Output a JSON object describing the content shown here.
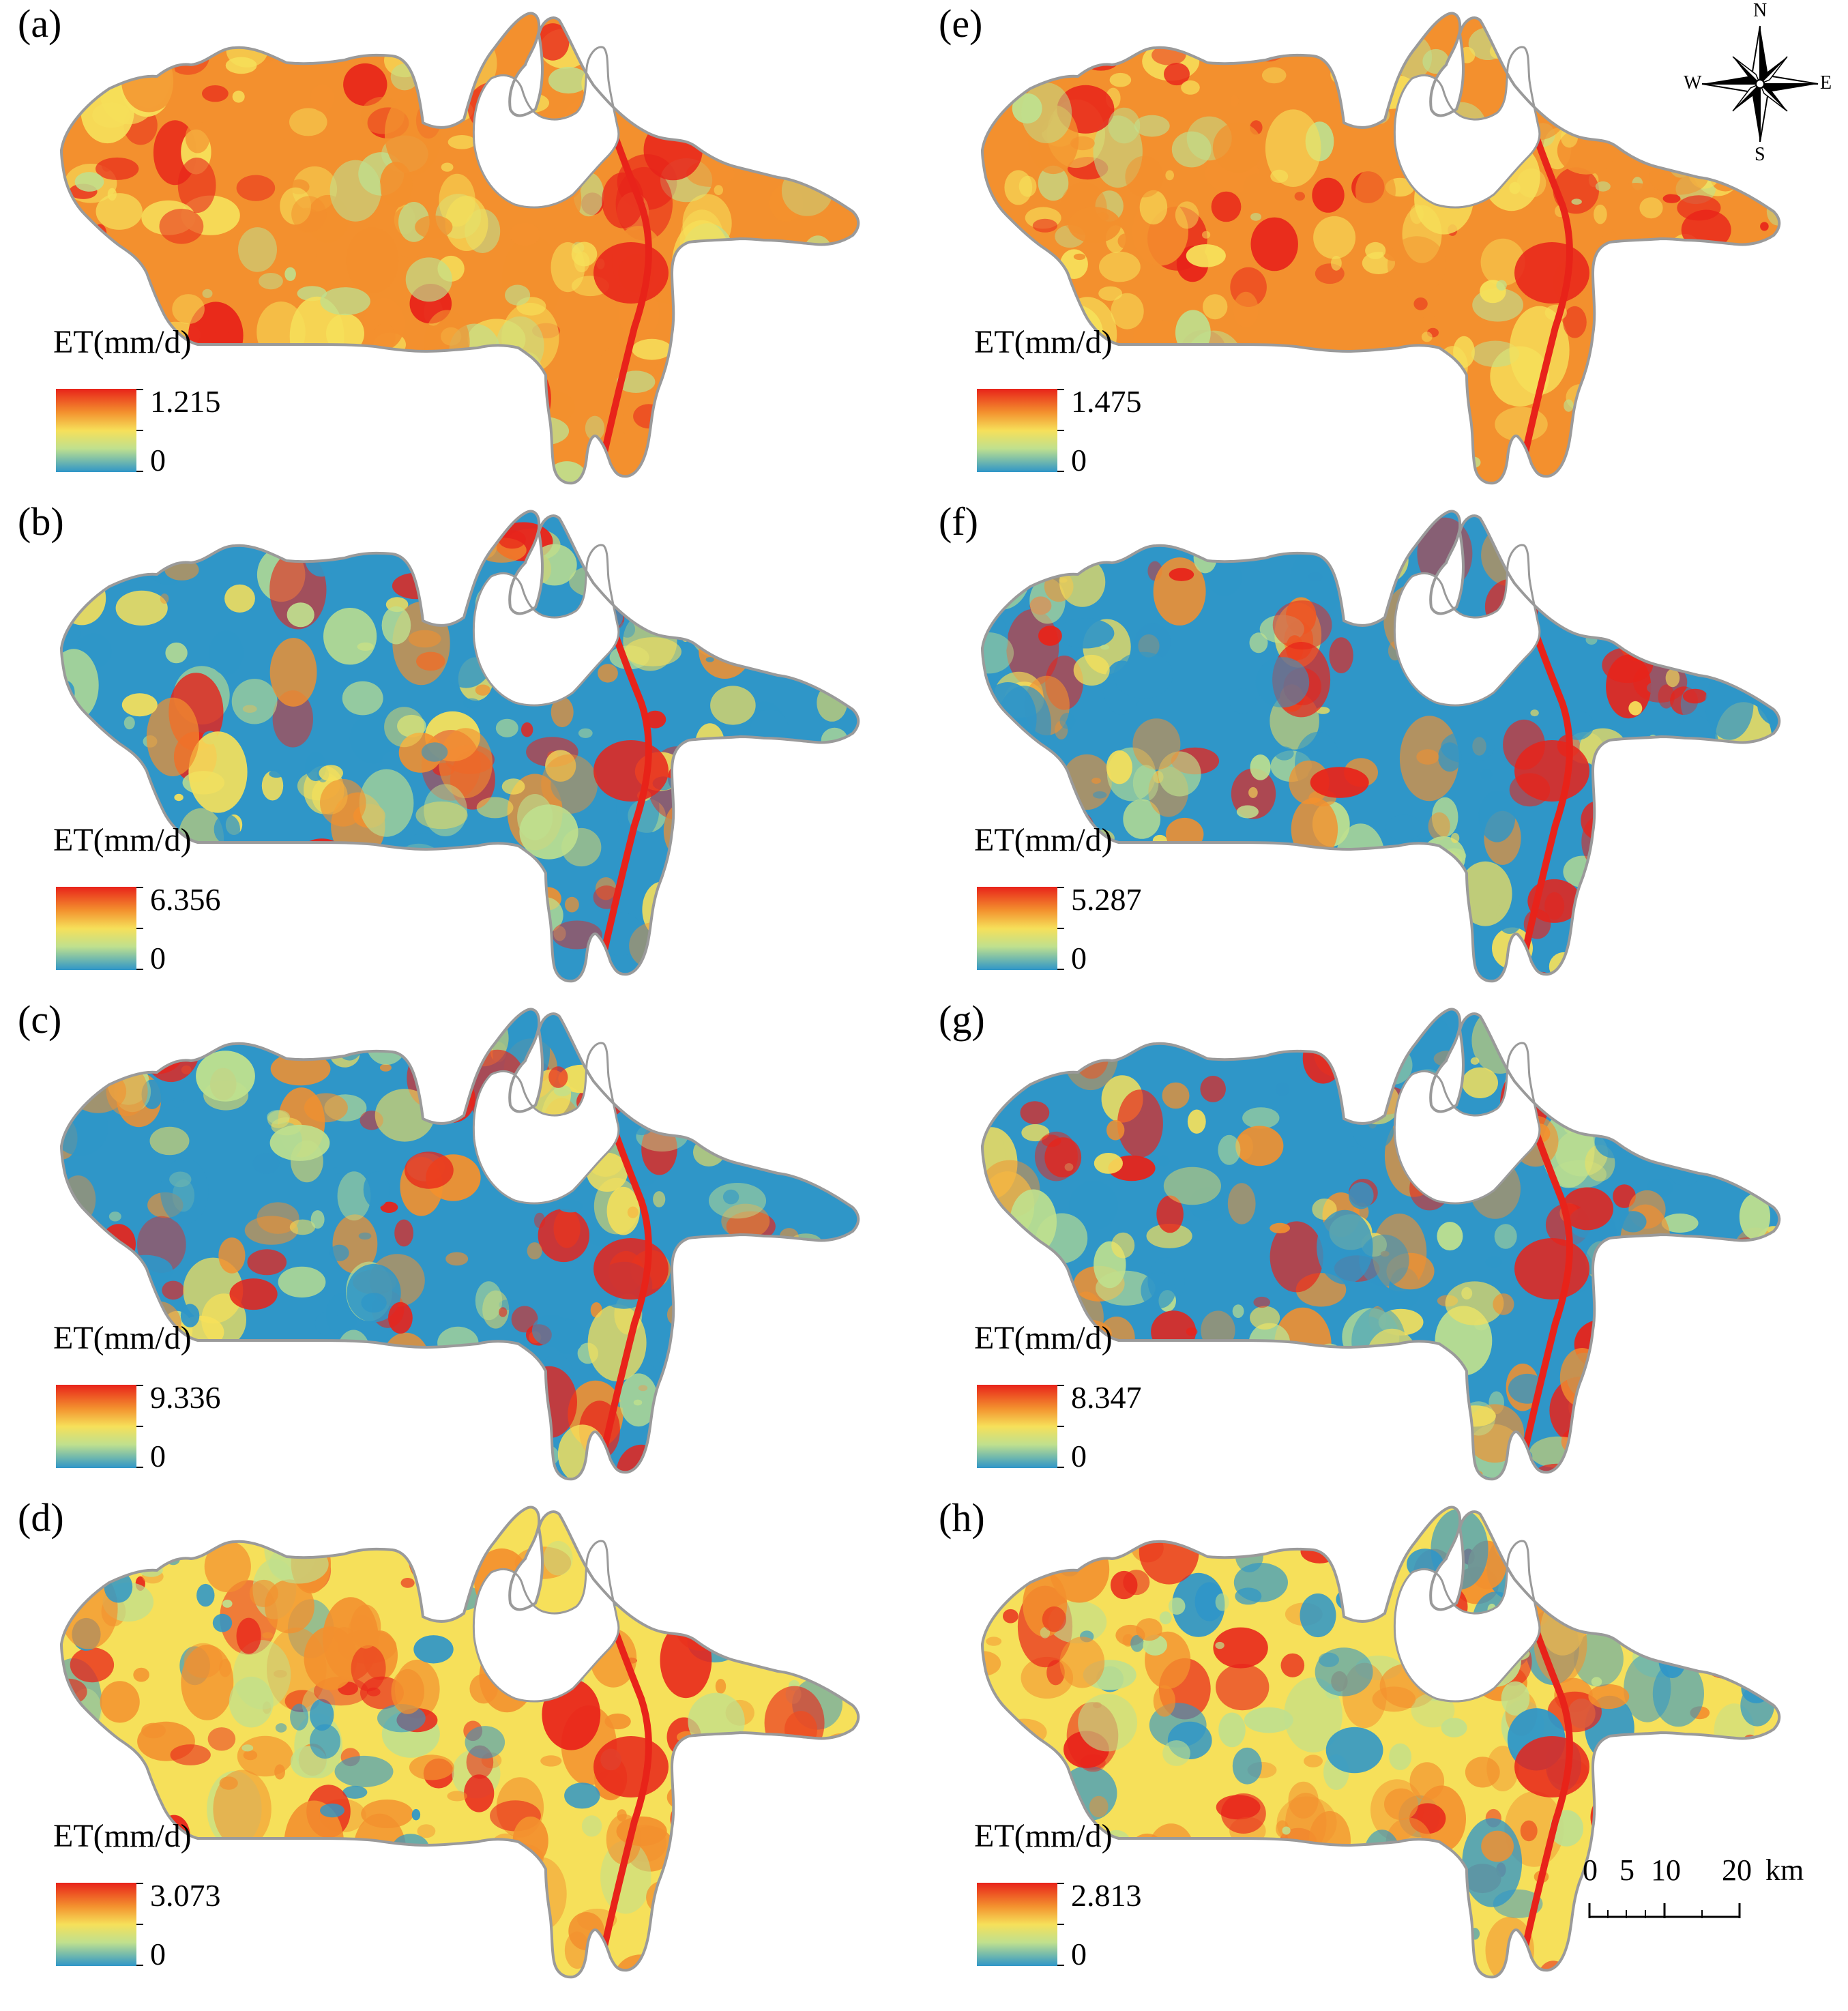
{
  "panels": [
    {
      "id": "a",
      "label": "(a)",
      "legend_title": "ET(mm/d)",
      "legend_max": "1.215",
      "legend_min": "0",
      "pattern": "orange"
    },
    {
      "id": "b",
      "label": "(b)",
      "legend_title": "ET(mm/d)",
      "legend_max": "6.356",
      "legend_min": "0",
      "pattern": "blue"
    },
    {
      "id": "c",
      "label": "(c)",
      "legend_title": "ET(mm/d)",
      "legend_max": "9.336",
      "legend_min": "0",
      "pattern": "blue"
    },
    {
      "id": "d",
      "label": "(d)",
      "legend_title": "ET(mm/d)",
      "legend_max": "3.073",
      "legend_min": "0",
      "pattern": "yellow"
    },
    {
      "id": "e",
      "label": "(e)",
      "legend_title": "ET(mm/d)",
      "legend_max": "1.475",
      "legend_min": "0",
      "pattern": "orange"
    },
    {
      "id": "f",
      "label": "(f)",
      "legend_title": "ET(mm/d)",
      "legend_max": "5.287",
      "legend_min": "0",
      "pattern": "blue"
    },
    {
      "id": "g",
      "label": "(g)",
      "legend_title": "ET(mm/d)",
      "legend_max": "8.347",
      "legend_min": "0",
      "pattern": "blue"
    },
    {
      "id": "h",
      "label": "(h)",
      "legend_title": "ET(mm/d)",
      "legend_max": "2.813",
      "legend_min": "0",
      "pattern": "yellow"
    }
  ],
  "compass": {
    "n": "N",
    "s": "S",
    "e": "E",
    "w": "W"
  },
  "scale_bar": {
    "labels": [
      "0",
      "5",
      "10",
      "20"
    ],
    "unit": "km"
  },
  "colors": {
    "high": "#e8231a",
    "mid_high": "#f3902e",
    "mid": "#f6e05a",
    "mid_low": "#bfe08e",
    "low": "#2f96c8",
    "outline": "#9a9a9a"
  }
}
